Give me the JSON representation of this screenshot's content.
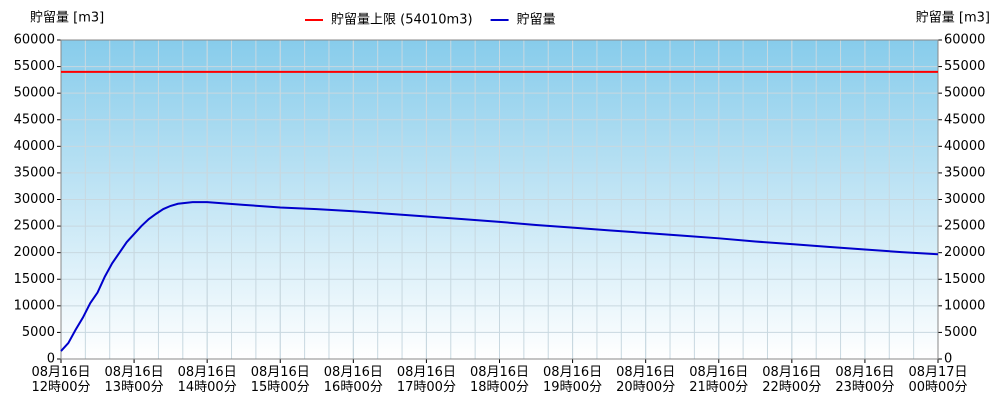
{
  "chart_data": {
    "type": "line",
    "ylabel": "貯留量 [m3]",
    "y2label": "貯留量 [m3]",
    "ylim": [
      0,
      60000
    ],
    "yticks": [
      0,
      5000,
      10000,
      15000,
      20000,
      25000,
      30000,
      35000,
      40000,
      45000,
      50000,
      55000,
      60000
    ],
    "y2lim": [
      0,
      60000
    ],
    "y2ticks": [
      0,
      5000,
      10000,
      15000,
      20000,
      25000,
      30000,
      35000,
      40000,
      45000,
      50000,
      55000,
      60000
    ],
    "xlim": [
      0,
      12
    ],
    "xticks": [
      {
        "value": 0,
        "label": "08月16日\n12時00分"
      },
      {
        "value": 1,
        "label": "08月16日\n13時00分"
      },
      {
        "value": 2,
        "label": "08月16日\n14時00分"
      },
      {
        "value": 3,
        "label": "08月16日\n15時00分"
      },
      {
        "value": 4,
        "label": "08月16日\n16時00分"
      },
      {
        "value": 5,
        "label": "08月16日\n17時00分"
      },
      {
        "value": 6,
        "label": "08月16日\n18時00分"
      },
      {
        "value": 7,
        "label": "08月16日\n19時00分"
      },
      {
        "value": 8,
        "label": "08月16日\n20時00分"
      },
      {
        "value": 9,
        "label": "08月16日\n21時00分"
      },
      {
        "value": 10,
        "label": "08月16日\n22時00分"
      },
      {
        "value": 11,
        "label": "08月16日\n23時00分"
      },
      {
        "value": 12,
        "label": "08月17日\n00時00分"
      }
    ],
    "grid": true,
    "legend": "top",
    "series": [
      {
        "name": "貯留量上限 (54010m3)",
        "color": "#ff0000",
        "x": [
          0,
          12
        ],
        "values": [
          54010,
          54010
        ]
      },
      {
        "name": "貯留量",
        "color": "#0000cc",
        "x": [
          0,
          0.1,
          0.2,
          0.3,
          0.4,
          0.5,
          0.6,
          0.7,
          0.8,
          0.9,
          1.0,
          1.1,
          1.2,
          1.3,
          1.4,
          1.5,
          1.6,
          1.8,
          2.0,
          2.5,
          3,
          3.5,
          4,
          4.5,
          5,
          5.5,
          6,
          6.5,
          7,
          7.5,
          8,
          8.5,
          9,
          9.5,
          10,
          10.5,
          11,
          11.5,
          12
        ],
        "values": [
          1500,
          3000,
          5500,
          7800,
          10500,
          12500,
          15500,
          18000,
          20000,
          22000,
          23500,
          25000,
          26300,
          27300,
          28200,
          28800,
          29200,
          29500,
          29500,
          29000,
          28500,
          28200,
          27800,
          27300,
          26800,
          26300,
          25800,
          25200,
          24700,
          24200,
          23700,
          23200,
          22700,
          22100,
          21600,
          21100,
          20600,
          20100,
          19700
        ]
      }
    ]
  }
}
